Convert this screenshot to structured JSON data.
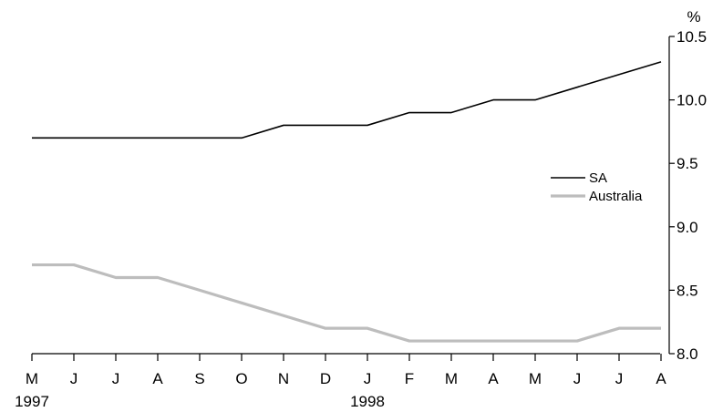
{
  "chart_data": {
    "type": "line",
    "title": "",
    "xlabel": "",
    "ylabel": "%",
    "ylim": [
      8.0,
      10.5
    ],
    "y_ticks": [
      "8.0",
      "8.5",
      "9.0",
      "9.5",
      "10.0",
      "10.5"
    ],
    "categories": [
      "M",
      "J",
      "J",
      "A",
      "S",
      "O",
      "N",
      "D",
      "J",
      "F",
      "M",
      "A",
      "M",
      "J",
      "J",
      "A"
    ],
    "year_labels": [
      {
        "index": 0,
        "label": "1997"
      },
      {
        "index": 8,
        "label": "1998"
      }
    ],
    "legend_position": "right",
    "grid": false,
    "series": [
      {
        "name": "SA",
        "color": "#000000",
        "values": [
          9.7,
          9.7,
          9.7,
          9.7,
          9.7,
          9.7,
          9.8,
          9.8,
          9.8,
          9.9,
          9.9,
          10.0,
          10.0,
          10.1,
          10.2,
          10.3
        ]
      },
      {
        "name": "Australia",
        "color": "#bdbdbd",
        "values": [
          8.7,
          8.7,
          8.6,
          8.6,
          8.5,
          8.4,
          8.3,
          8.2,
          8.2,
          8.1,
          8.1,
          8.1,
          8.1,
          8.1,
          8.2,
          8.2
        ]
      }
    ]
  }
}
